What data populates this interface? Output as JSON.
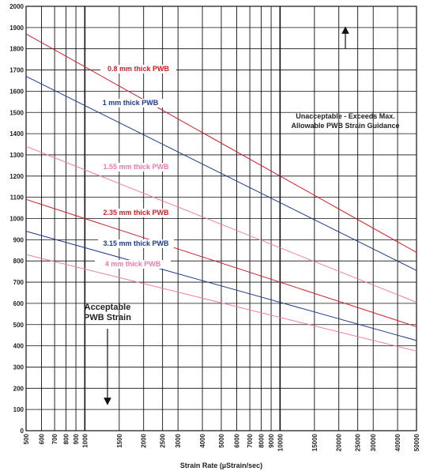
{
  "chart_data": {
    "type": "line",
    "x_label": "Strain Rate (µStrain/sec)",
    "x_log": true,
    "grid": true,
    "xlim": [
      500,
      50000
    ],
    "ylim": [
      0,
      2000
    ],
    "xticks": [
      500,
      600,
      700,
      800,
      900,
      1000,
      1500,
      2000,
      2500,
      3000,
      4000,
      5000,
      6000,
      7000,
      8000,
      9000,
      10000,
      15000,
      20000,
      25000,
      30000,
      40000,
      50000
    ],
    "yticks": [
      0,
      100,
      200,
      300,
      400,
      500,
      600,
      700,
      800,
      900,
      1000,
      1100,
      1200,
      1300,
      1400,
      1500,
      1600,
      1700,
      1800,
      1900,
      2000
    ],
    "x": [
      500,
      50000
    ],
    "series": [
      {
        "name": "0.8 mm thick PWB",
        "color": "#d0202a",
        "values": [
          1870,
          840
        ]
      },
      {
        "name": "1 mm thick PWB",
        "color": "#1f3c8c",
        "values": [
          1670,
          755
        ]
      },
      {
        "name": "1.55 mm thick PWB",
        "color": "#f07aa8",
        "values": [
          1340,
          605
        ]
      },
      {
        "name": "2.35 mm thick PWB",
        "color": "#d0202a",
        "values": [
          1090,
          490
        ]
      },
      {
        "name": "3.15 mm thick PWB",
        "color": "#1f3c8c",
        "values": [
          940,
          425
        ]
      },
      {
        "name": "4 mm thick PWB",
        "color": "#f07aa8",
        "values": [
          830,
          375
        ]
      }
    ],
    "annotations": [
      {
        "lines": [
          "Unacceptable - Exceeds Max.",
          "Allowable PWB Strain Guidance"
        ]
      },
      {
        "lines": [
          "Acceptable",
          "PWB Strain"
        ]
      }
    ]
  }
}
